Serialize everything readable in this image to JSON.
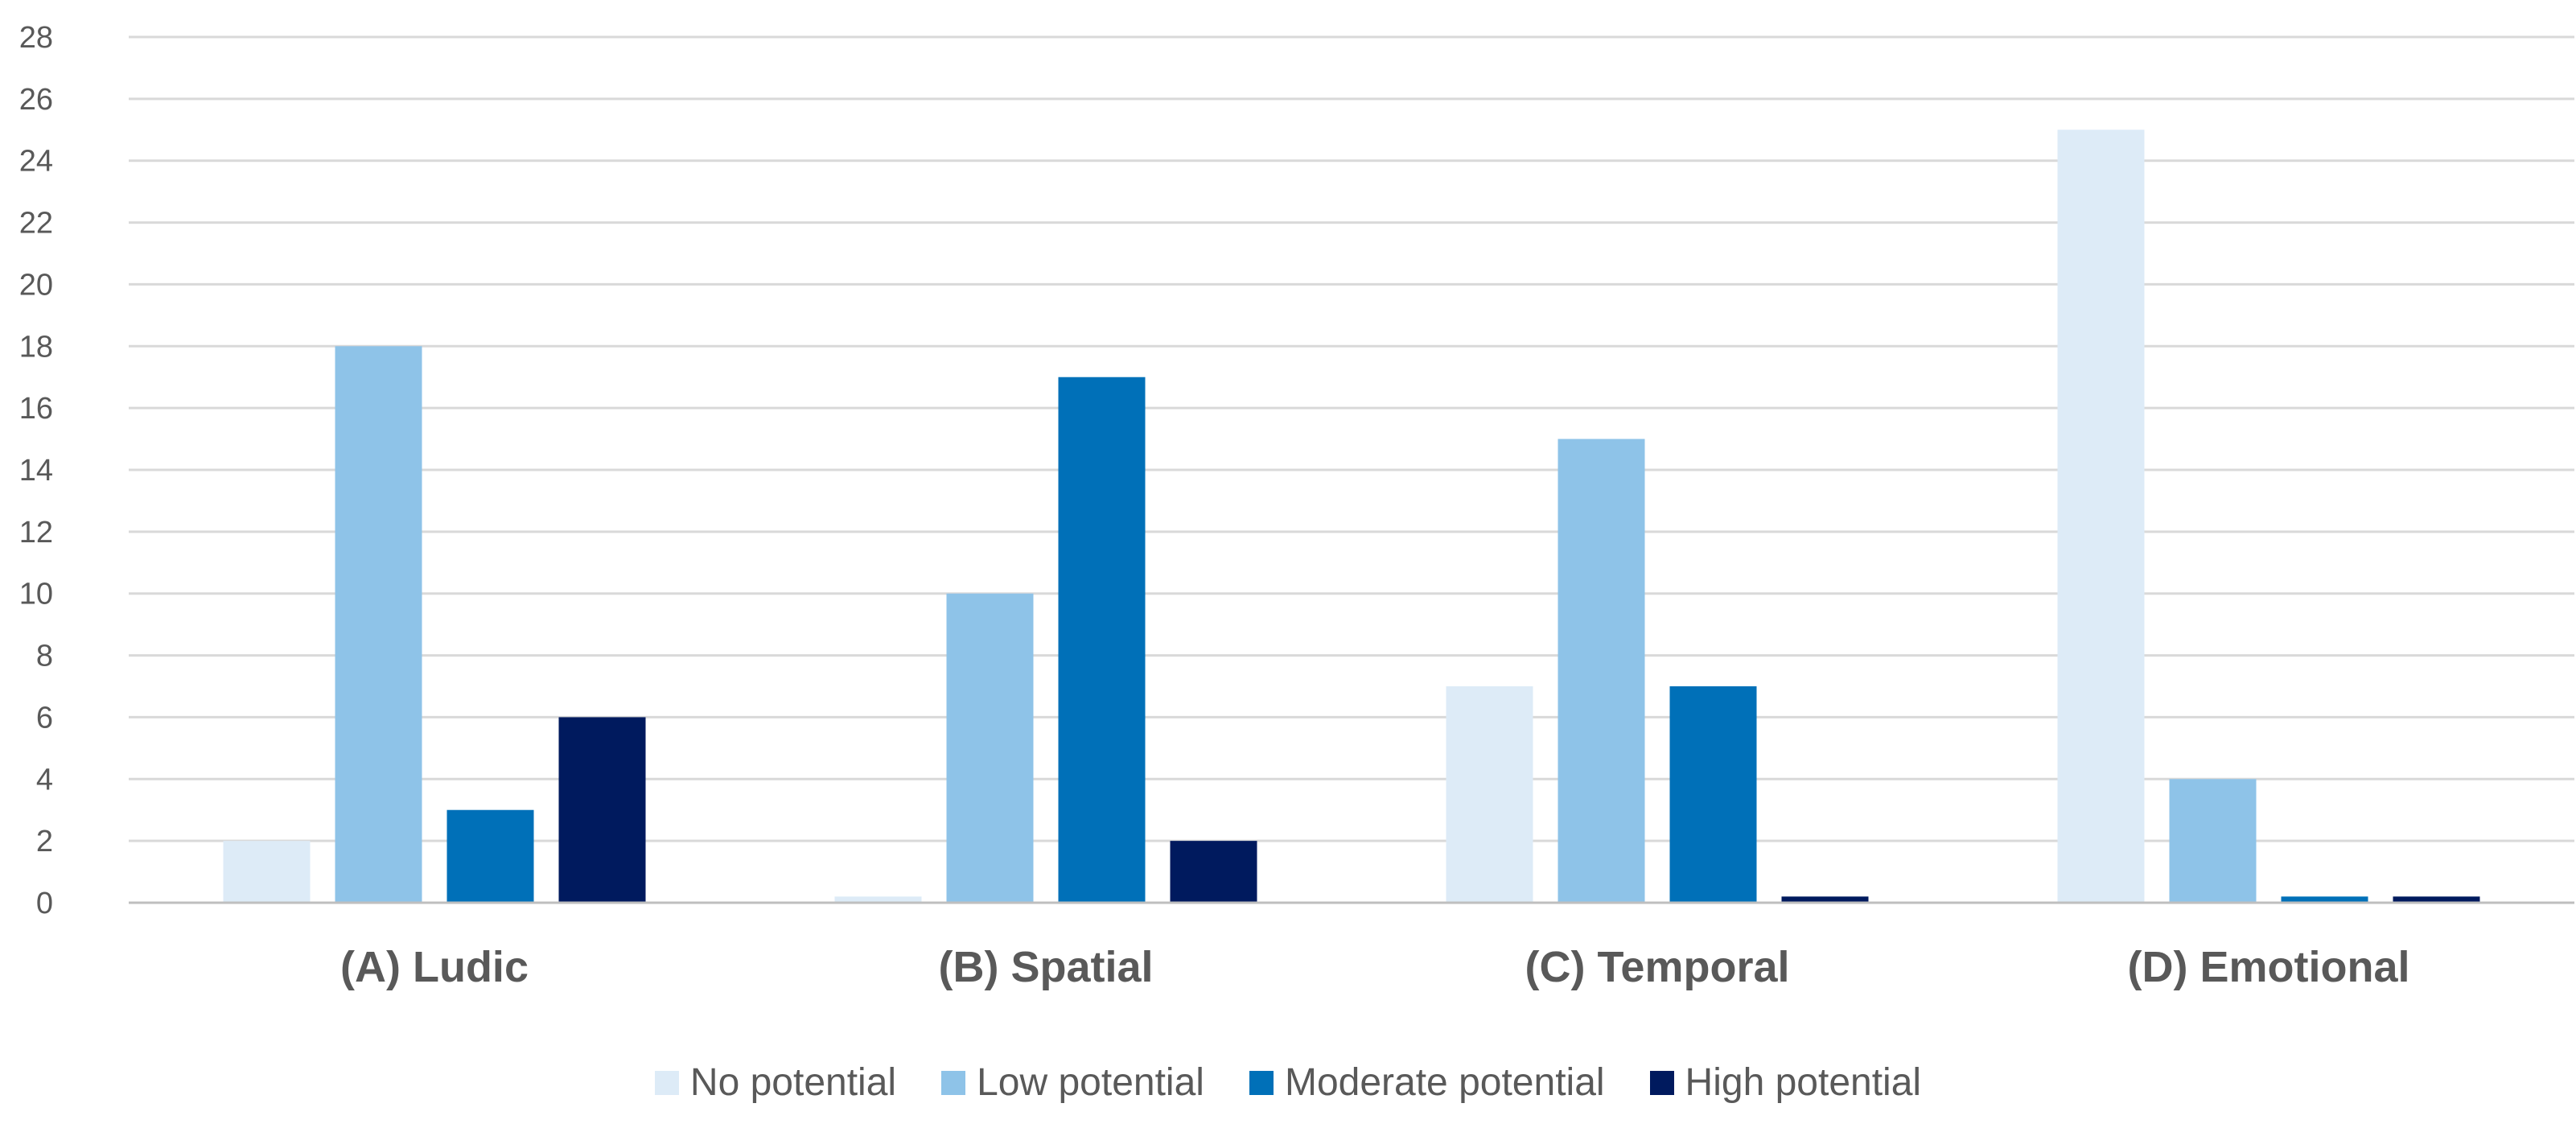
{
  "chart_data": {
    "type": "bar",
    "title": "",
    "xlabel": "",
    "ylabel": "",
    "ylim": [
      0,
      28
    ],
    "yticks": [
      0,
      2,
      4,
      6,
      8,
      10,
      12,
      14,
      16,
      18,
      20,
      22,
      24,
      26,
      28
    ],
    "grid": true,
    "legend_position": "bottom",
    "categories": [
      "(A) Ludic",
      "(B) Spatial",
      "(C) Temporal",
      "(D) Emotional"
    ],
    "series": [
      {
        "name": "No potential",
        "color": "#DDEBF7",
        "values": [
          2,
          0.2,
          7,
          25
        ]
      },
      {
        "name": "Low potential",
        "color": "#8EC3E8",
        "values": [
          18,
          10,
          15,
          4
        ]
      },
      {
        "name": "Moderate potential",
        "color": "#0070B8",
        "values": [
          3,
          17,
          7,
          0.2
        ]
      },
      {
        "name": "High potential",
        "color": "#001A5E",
        "values": [
          6,
          2,
          0.2,
          0.2
        ]
      }
    ]
  }
}
